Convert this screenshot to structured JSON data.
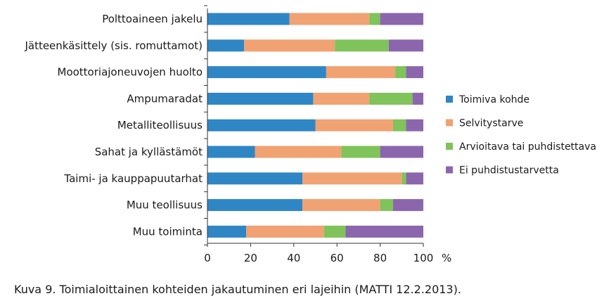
{
  "chart_data": {
    "type": "bar",
    "orientation": "horizontal",
    "stacked": true,
    "categories": [
      "Polttoaineen jakelu",
      "Jätteenkäsittely (sis. romuttamot)",
      "Moottoriajoneuvojen huolto",
      "Ampumaradat",
      "Metalliteollisuus",
      "Sahat ja kyllästämöt",
      "Taimi- ja kauppapuutarhat",
      "Muu teollisuus",
      "Muu toiminta"
    ],
    "series": [
      {
        "name": "Toimiva kohde",
        "color": "#2f86c5",
        "values": [
          38,
          17,
          55,
          49,
          50,
          22,
          44,
          44,
          18
        ]
      },
      {
        "name": "Selvitystarve",
        "color": "#f0a272",
        "values": [
          37,
          42,
          32,
          26,
          36,
          40,
          46,
          36,
          36
        ]
      },
      {
        "name": "Arvioitava tai puhdistettava",
        "color": "#7fc35a",
        "values": [
          5,
          25,
          5,
          20,
          6,
          18,
          2,
          6,
          10
        ]
      },
      {
        "name": "Ei puhdistustarvetta",
        "color": "#8b66ad",
        "values": [
          20,
          16,
          8,
          5,
          8,
          20,
          8,
          14,
          36
        ]
      }
    ],
    "xlim": [
      0,
      100
    ],
    "xticks": [
      "0",
      "20",
      "40",
      "60",
      "80",
      "100"
    ],
    "xunit": "%",
    "legend_position": "right",
    "grid": false
  },
  "caption": "Kuva 9. Toimialoittainen kohteiden jakautuminen eri lajeihin (MATTI 12.2.2013)."
}
